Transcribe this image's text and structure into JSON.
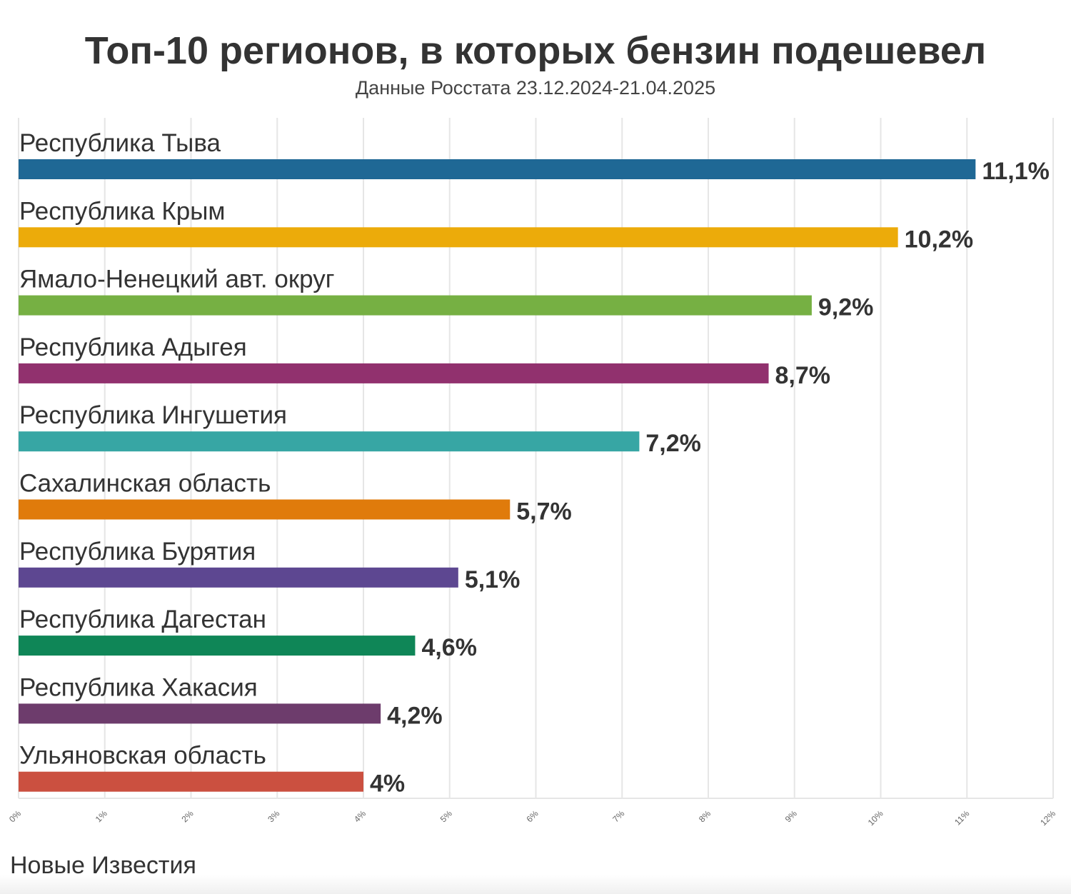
{
  "chart_data": {
    "type": "bar",
    "orientation": "horizontal",
    "title": "Топ-10 регионов, в которых бензин подешевел",
    "subtitle": "Данные Росстата 23.12.2024-21.04.2025",
    "xlabel": "",
    "ylabel": "",
    "xlim": [
      0,
      12
    ],
    "grid": true,
    "x_ticks": [
      "0%",
      "1%",
      "2%",
      "3%",
      "4%",
      "5%",
      "6%",
      "7%",
      "8%",
      "9%",
      "10%",
      "11%",
      "12%"
    ],
    "categories": [
      "Республика Тыва",
      "Республика Крым",
      "Ямало-Ненецкий авт. округ",
      "Республика Адыгея",
      "Республика Ингушетия",
      "Сахалинская область",
      "Республика Бурятия",
      "Республика Дагестан",
      "Республика Хакасия",
      "Ульяновская область"
    ],
    "values": [
      11.1,
      10.2,
      9.2,
      8.7,
      7.2,
      5.7,
      5.1,
      4.6,
      4.2,
      4
    ],
    "data_labels": [
      "11,1%",
      "10,2%",
      "9,2%",
      "8,7%",
      "7,2%",
      "5,7%",
      "5,1%",
      "4,6%",
      "4,2%",
      "4%"
    ],
    "colors": [
      "#1f6895",
      "#ecab0a",
      "#76b043",
      "#91316e",
      "#37a6a4",
      "#e07b0b",
      "#5d4791",
      "#0f8657",
      "#6d3c6c",
      "#cb5040"
    ]
  },
  "source": "Новые Известия"
}
